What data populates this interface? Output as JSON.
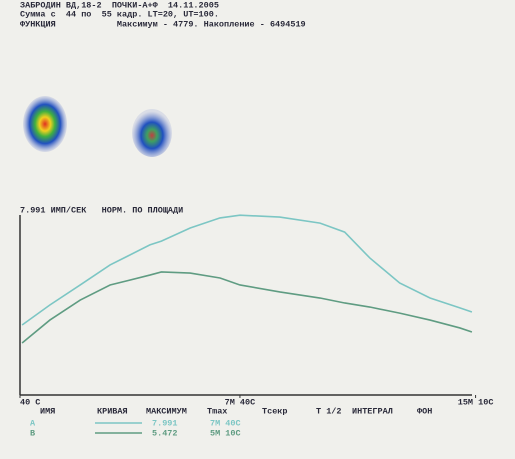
{
  "header": {
    "line1": "ЗАБРОДИН ВД,18-2  ПОЧКИ-А+Ф  14.11.2005",
    "line2": "Сумма с  44 по  55 кадр. LT=20, UT=100.",
    "line3": "ФУНКЦИЯ            Максимум - 4779. Накопление - 6494519"
  },
  "chart_data": {
    "type": "line",
    "subtitle": "7.991 ИМП/СЕК   НОРМ. ПО ПЛОЩАДИ",
    "x": [
      44,
      97,
      155,
      212,
      288,
      310,
      365,
      422,
      460,
      536,
      613,
      660,
      708,
      765,
      823,
      880,
      903
    ],
    "xlim": [
      40,
      970
    ],
    "xticks": [
      {
        "value": 40,
        "label": "40 С"
      },
      {
        "value": 460,
        "label": "7М 40С"
      },
      {
        "value": 910,
        "label": "15М 10С"
      }
    ],
    "ylim": [
      0,
      8.4
    ],
    "series": [
      {
        "name": "A",
        "color": "#7cc6c4",
        "values": [
          3.11,
          4.0,
          4.89,
          5.78,
          6.67,
          6.84,
          7.42,
          7.87,
          7.99,
          7.91,
          7.64,
          7.24,
          6.09,
          4.98,
          4.31,
          3.87,
          3.69
        ]
      },
      {
        "name": "B",
        "color": "#5f9c82",
        "values": [
          2.31,
          3.33,
          4.22,
          4.89,
          5.33,
          5.47,
          5.42,
          5.2,
          4.89,
          4.58,
          4.31,
          4.09,
          3.91,
          3.64,
          3.33,
          2.98,
          2.8
        ]
      }
    ]
  },
  "table": {
    "columns": [
      "ИМЯ",
      "КРИВАЯ",
      "МАКСИМУМ",
      "Tmax",
      "Tсекр",
      "T 1/2",
      "ИНТЕГРАЛ",
      "ФОН"
    ],
    "rows": [
      {
        "max": "7.991",
        "tmax": "7М 40С"
      },
      {
        "max": "5.472",
        "tmax": "5М 10С"
      }
    ]
  }
}
